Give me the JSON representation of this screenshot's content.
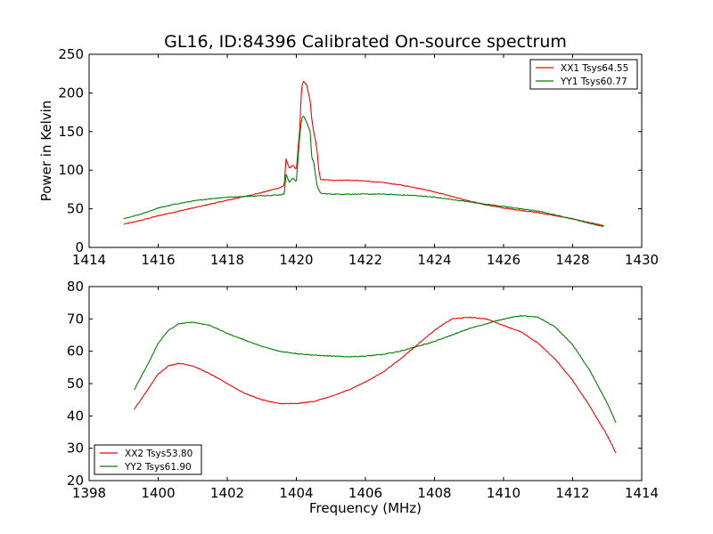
{
  "title": "GL16, ID:84396 Calibrated On-source spectrum",
  "chart_data": [
    {
      "type": "line",
      "title": "GL16, ID:84396 Calibrated On-source spectrum",
      "xlabel": "",
      "ylabel": "Power in Kelvin",
      "xlim": [
        1414,
        1430
      ],
      "ylim": [
        0,
        250
      ],
      "x_ticks": [
        1414,
        1416,
        1418,
        1420,
        1422,
        1424,
        1426,
        1428,
        1430
      ],
      "y_ticks": [
        0,
        50,
        100,
        150,
        200,
        250
      ],
      "grid": false,
      "legend_position": "upper-right",
      "series": [
        {
          "name": "XX1 Tsys64.55",
          "color": "#ff0000",
          "points": [
            [
              1415.0,
              30
            ],
            [
              1415.5,
              35
            ],
            [
              1416.0,
              41
            ],
            [
              1416.5,
              46
            ],
            [
              1417.0,
              51
            ],
            [
              1417.5,
              56
            ],
            [
              1418.0,
              61
            ],
            [
              1418.5,
              66
            ],
            [
              1419.0,
              71
            ],
            [
              1419.5,
              77
            ],
            [
              1419.65,
              80
            ],
            [
              1419.7,
              115
            ],
            [
              1419.8,
              102
            ],
            [
              1419.9,
              107
            ],
            [
              1420.0,
              100
            ],
            [
              1420.1,
              155
            ],
            [
              1420.15,
              205
            ],
            [
              1420.2,
              215
            ],
            [
              1420.3,
              210
            ],
            [
              1420.4,
              190
            ],
            [
              1420.45,
              165
            ],
            [
              1420.5,
              150
            ],
            [
              1420.55,
              140
            ],
            [
              1420.6,
              125
            ],
            [
              1420.65,
              100
            ],
            [
              1420.7,
              88
            ],
            [
              1421.0,
              87
            ],
            [
              1421.5,
              87
            ],
            [
              1422.0,
              86
            ],
            [
              1422.5,
              84
            ],
            [
              1423.0,
              81
            ],
            [
              1423.5,
              77
            ],
            [
              1424.0,
              72
            ],
            [
              1424.5,
              66
            ],
            [
              1425.0,
              60
            ],
            [
              1425.5,
              55
            ],
            [
              1426.0,
              51
            ],
            [
              1426.5,
              48
            ],
            [
              1427.0,
              45
            ],
            [
              1427.5,
              41
            ],
            [
              1428.0,
              37
            ],
            [
              1428.5,
              32
            ],
            [
              1428.9,
              28
            ]
          ]
        },
        {
          "name": "YY1 Tsys60.77",
          "color": "#008000",
          "points": [
            [
              1415.0,
              37
            ],
            [
              1415.5,
              43
            ],
            [
              1416.0,
              51
            ],
            [
              1416.5,
              56
            ],
            [
              1417.0,
              60
            ],
            [
              1417.5,
              63
            ],
            [
              1418.0,
              65
            ],
            [
              1418.5,
              66
            ],
            [
              1419.0,
              67
            ],
            [
              1419.5,
              68
            ],
            [
              1419.65,
              69
            ],
            [
              1419.7,
              95
            ],
            [
              1419.8,
              84
            ],
            [
              1419.9,
              90
            ],
            [
              1420.0,
              85
            ],
            [
              1420.1,
              145
            ],
            [
              1420.15,
              165
            ],
            [
              1420.2,
              171
            ],
            [
              1420.3,
              162
            ],
            [
              1420.4,
              150
            ],
            [
              1420.45,
              115
            ],
            [
              1420.5,
              112
            ],
            [
              1420.55,
              95
            ],
            [
              1420.6,
              80
            ],
            [
              1420.7,
              70
            ],
            [
              1421.0,
              69
            ],
            [
              1421.5,
              69
            ],
            [
              1422.0,
              69
            ],
            [
              1422.5,
              69
            ],
            [
              1423.0,
              68
            ],
            [
              1423.5,
              67
            ],
            [
              1424.0,
              65
            ],
            [
              1424.5,
              62
            ],
            [
              1425.0,
              59
            ],
            [
              1425.5,
              56
            ],
            [
              1426.0,
              53
            ],
            [
              1426.5,
              50
            ],
            [
              1427.0,
              47
            ],
            [
              1427.5,
              42
            ],
            [
              1428.0,
              37
            ],
            [
              1428.5,
              31
            ],
            [
              1428.9,
              27
            ]
          ]
        }
      ]
    },
    {
      "type": "line",
      "title": "",
      "xlabel": "Frequency (MHz)",
      "ylabel": "",
      "xlim": [
        1398,
        1414
      ],
      "ylim": [
        20,
        80
      ],
      "x_ticks": [
        1398,
        1400,
        1402,
        1404,
        1406,
        1408,
        1410,
        1412,
        1414
      ],
      "y_ticks": [
        20,
        30,
        40,
        50,
        60,
        70,
        80
      ],
      "grid": false,
      "legend_position": "lower-left",
      "series": [
        {
          "name": "XX2 Tsys53.80",
          "color": "#ff0000",
          "points": [
            [
              1399.3,
              42
            ],
            [
              1399.5,
              45
            ],
            [
              1399.75,
              49
            ],
            [
              1400.0,
              53
            ],
            [
              1400.3,
              55.5
            ],
            [
              1400.6,
              56.3
            ],
            [
              1401.0,
              55.5
            ],
            [
              1401.5,
              53
            ],
            [
              1402.0,
              50
            ],
            [
              1402.5,
              47
            ],
            [
              1403.0,
              45
            ],
            [
              1403.5,
              43.8
            ],
            [
              1404.0,
              43.8
            ],
            [
              1404.5,
              44.5
            ],
            [
              1405.0,
              46
            ],
            [
              1405.5,
              48
            ],
            [
              1406.0,
              50.5
            ],
            [
              1406.5,
              53.5
            ],
            [
              1407.0,
              57.5
            ],
            [
              1407.5,
              62
            ],
            [
              1408.0,
              66.5
            ],
            [
              1408.5,
              70
            ],
            [
              1409.0,
              70.5
            ],
            [
              1409.5,
              70
            ],
            [
              1410.0,
              68
            ],
            [
              1410.5,
              66
            ],
            [
              1411.0,
              62.5
            ],
            [
              1411.5,
              57.5
            ],
            [
              1412.0,
              51
            ],
            [
              1412.5,
              43
            ],
            [
              1413.0,
              34
            ],
            [
              1413.25,
              28.5
            ]
          ]
        },
        {
          "name": "YY2 Tsys61.90",
          "color": "#008000",
          "points": [
            [
              1399.3,
              48
            ],
            [
              1399.5,
              52
            ],
            [
              1399.75,
              57
            ],
            [
              1400.0,
              62.5
            ],
            [
              1400.3,
              66.5
            ],
            [
              1400.6,
              68.5
            ],
            [
              1401.0,
              69
            ],
            [
              1401.5,
              68
            ],
            [
              1402.0,
              65.5
            ],
            [
              1402.5,
              63.5
            ],
            [
              1403.0,
              61.5
            ],
            [
              1403.5,
              60
            ],
            [
              1404.0,
              59.3
            ],
            [
              1404.5,
              58.8
            ],
            [
              1405.0,
              58.5
            ],
            [
              1405.5,
              58.3
            ],
            [
              1406.0,
              58.5
            ],
            [
              1406.5,
              59
            ],
            [
              1407.0,
              60
            ],
            [
              1407.5,
              61.5
            ],
            [
              1408.0,
              63
            ],
            [
              1408.5,
              65
            ],
            [
              1409.0,
              67
            ],
            [
              1409.5,
              68.5
            ],
            [
              1410.0,
              70
            ],
            [
              1410.5,
              71
            ],
            [
              1411.0,
              70.5
            ],
            [
              1411.5,
              67.5
            ],
            [
              1412.0,
              62
            ],
            [
              1412.5,
              54
            ],
            [
              1413.0,
              44
            ],
            [
              1413.25,
              38
            ]
          ]
        }
      ]
    }
  ]
}
